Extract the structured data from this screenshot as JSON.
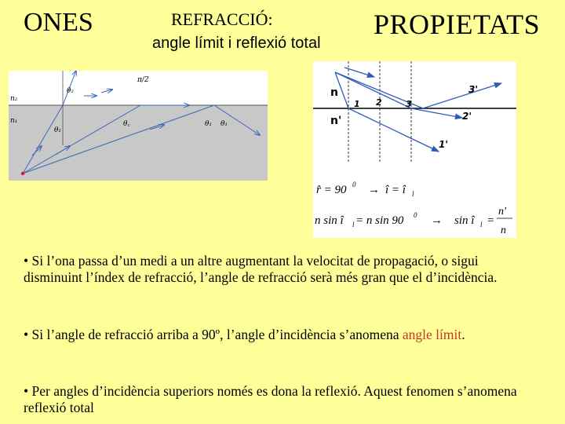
{
  "header": {
    "left_title": "ONES",
    "subtitle_line1": "REFRACCIÓ:",
    "subtitle_line2": "angle límit i reflexió total",
    "right_title": "PROPIETATS"
  },
  "figure_left": {
    "labels": {
      "n2": "n₂",
      "n1": "n₁",
      "theta2": "θ₂",
      "theta1_a": "θ₁",
      "theta1_b": "θ₁",
      "theta1_c": "θ₁",
      "pi_half": "π/2",
      "theta_c": "θ꜀"
    },
    "colors": {
      "upper_medium": "#FFFFFF",
      "lower_medium": "#C8C8C8",
      "rays": "#3A67B8",
      "source": "#E3141E"
    }
  },
  "figure_right": {
    "labels": {
      "n_top": "n",
      "n_bottom": "n'",
      "ray3p": "3'",
      "ray2p": "2'",
      "ray1p": "1'",
      "ray1": "1",
      "ray2": "2",
      "ray3": "3"
    },
    "formula1": {
      "lhs": "r̂ = 90",
      "exp": "0",
      "arrow": "→",
      "rhs": "î = î",
      "sub": "l"
    },
    "formula2": {
      "lhs": "n sin î",
      "sub": "l",
      "mid": " = n sin 90",
      "exp": "0",
      "arrow": "→",
      "rhs": "sin î",
      "sub2": "l",
      "eq": "=",
      "num": "n'",
      "den": "n"
    }
  },
  "bullets": {
    "b1": "• Si l’ona passa d’un medi a un altre augmentant la velocitat de propagació, o sigui disminuint l’índex de refracció, l’angle de refracció serà més gran que el d’incidència.",
    "b2_prefix": "• Si l’angle de refracció arriba a 90º, l’angle d’incidència s’anomena ",
    "b2_highlight": "angle límit",
    "b2_suffix": ".",
    "b3": "• Per angles d’incidència superiors només es dona la reflexió. Aquest fenomen s’anomena reflexió total"
  },
  "colors": {
    "background": "#FFFF99",
    "highlight": "#C0392B",
    "ray_blue": "#2E5CB8"
  }
}
